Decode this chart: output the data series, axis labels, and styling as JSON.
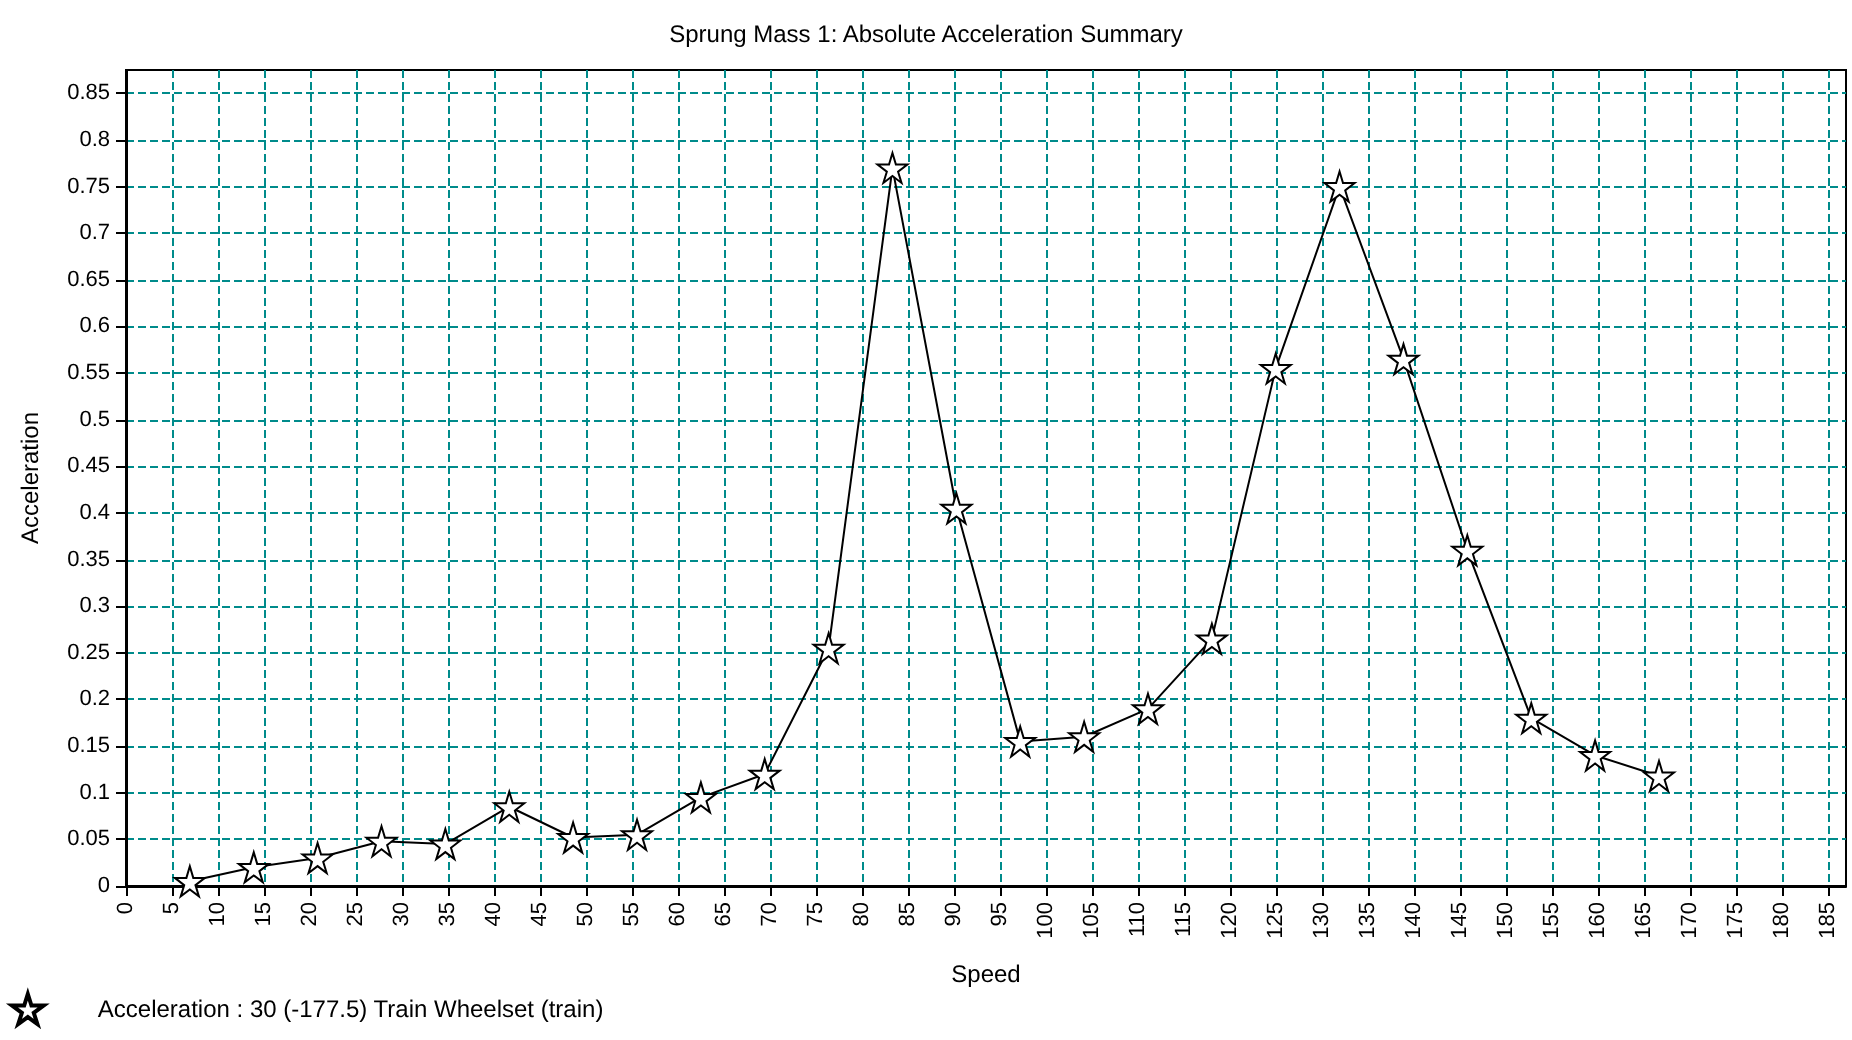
{
  "chart_data": {
    "type": "line",
    "title": "Sprung Mass 1: Absolute Acceleration Summary",
    "xlabel": "Speed",
    "ylabel": "Acceleration",
    "series": [
      {
        "name": "Acceleration : 30 (-177.5) Train Wheelset (train)",
        "color": "#000000",
        "x": [
          6.94,
          13.89,
          20.83,
          27.78,
          34.72,
          41.67,
          48.61,
          55.56,
          62.5,
          69.44,
          76.39,
          83.33,
          90.28,
          97.22,
          104.17,
          111.11,
          118.06,
          125,
          131.94,
          138.89,
          145.83,
          152.78,
          159.72,
          166.67
        ],
        "values": [
          0.005,
          0.02,
          0.03,
          0.048,
          0.045,
          0.085,
          0.052,
          0.055,
          0.095,
          0.12,
          0.255,
          0.77,
          0.405,
          0.155,
          0.16,
          0.19,
          0.265,
          0.555,
          0.75,
          0.565,
          0.36,
          0.18,
          0.14,
          0.118
        ]
      }
    ],
    "xlim": [
      0,
      187
    ],
    "xticks": [
      0,
      5,
      10,
      15,
      20,
      25,
      30,
      35,
      40,
      45,
      50,
      55,
      60,
      65,
      70,
      75,
      80,
      85,
      90,
      95,
      100,
      105,
      110,
      115,
      120,
      125,
      130,
      135,
      140,
      145,
      150,
      155,
      160,
      165,
      170,
      175,
      180,
      185
    ],
    "ylim": [
      0,
      0.875
    ],
    "yticks": [
      0,
      0.05,
      0.1,
      0.15,
      0.2,
      0.25,
      0.3,
      0.35,
      0.4,
      0.45,
      0.5,
      0.55,
      0.6,
      0.65,
      0.7,
      0.75,
      0.8,
      0.85
    ],
    "grid": true,
    "legend": "bottom left",
    "marker": "star",
    "line_style": "solid"
  }
}
